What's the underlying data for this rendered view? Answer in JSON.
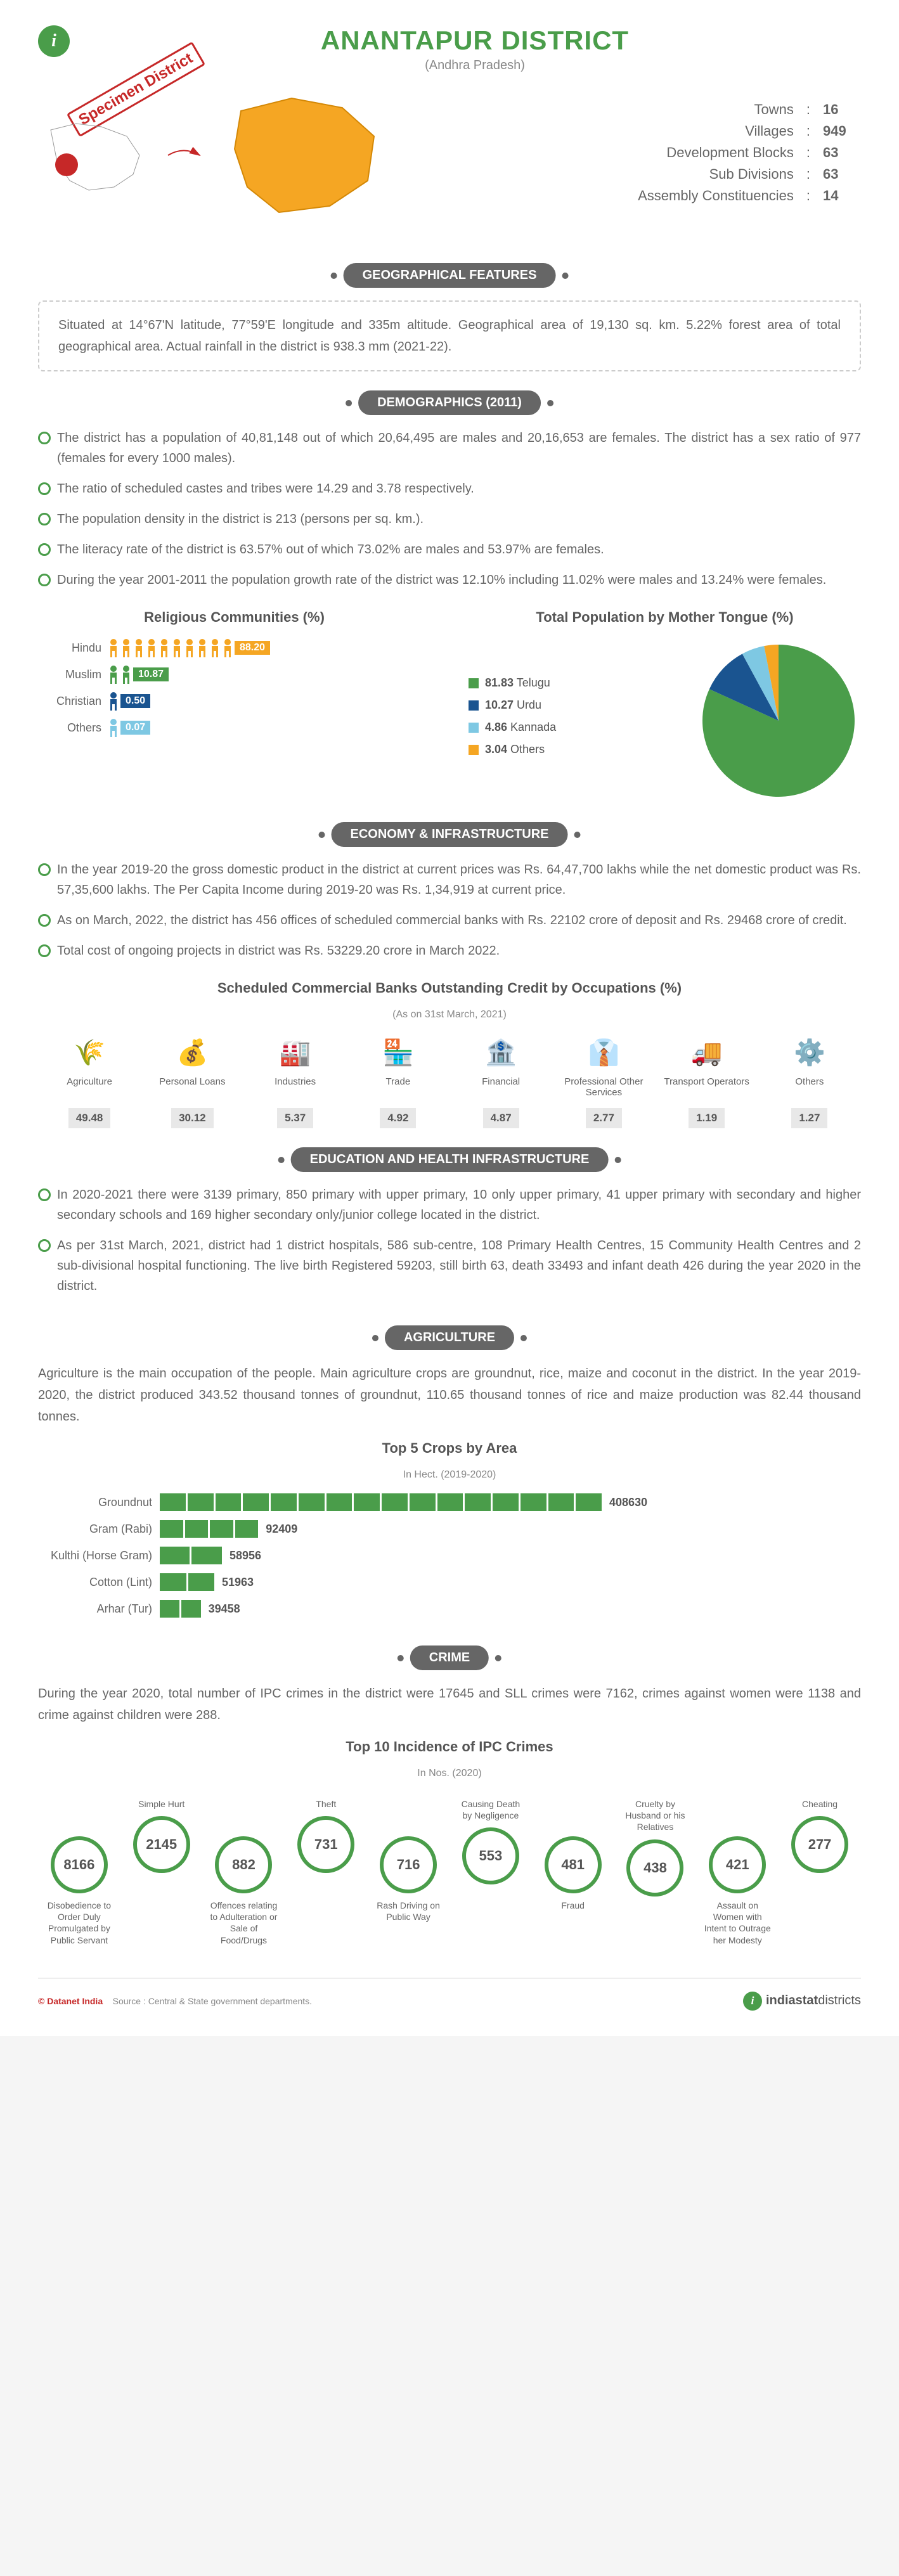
{
  "header": {
    "title": "ANANTAPUR DISTRICT",
    "subtitle": "(Andhra Pradesh)",
    "specimen": "Specimen District"
  },
  "stats": [
    {
      "label": "Towns",
      "value": "16"
    },
    {
      "label": "Villages",
      "value": "949"
    },
    {
      "label": "Development Blocks",
      "value": "63"
    },
    {
      "label": "Sub Divisions",
      "value": "63"
    },
    {
      "label": "Assembly Constituencies",
      "value": "14"
    }
  ],
  "sections": {
    "geo": {
      "title": "GEOGRAPHICAL FEATURES",
      "text": "Situated at 14°67'N latitude, 77°59'E longitude and 335m altitude. Geographical area of 19,130 sq. km. 5.22% forest area of total geographical area. Actual rainfall in the district is 938.3 mm (2021-22)."
    },
    "demo": {
      "title": "DEMOGRAPHICS (2011)",
      "bullets": [
        "The district has a population of 40,81,148 out of which 20,64,495 are males and 20,16,653 are females. The district has a sex ratio of 977 (females for every 1000 males).",
        "The ratio of scheduled castes and tribes were 14.29 and 3.78 respectively.",
        "The population density in the district is 213 (persons per sq. km.).",
        "The literacy rate of the district is 63.57% out of which 73.02% are males and 53.97% are females.",
        "During the year 2001-2011 the population growth rate of the district was 12.10% including 11.02% were males and 13.24% were females."
      ],
      "religion": {
        "title": "Religious Communities (%)",
        "items": [
          {
            "label": "Hindu",
            "value": "88.20",
            "count": 10,
            "color": "#f5a623"
          },
          {
            "label": "Muslim",
            "value": "10.87",
            "count": 2,
            "color": "#4a9d4a"
          },
          {
            "label": "Christian",
            "value": "0.50",
            "count": 1,
            "color": "#1a5490"
          },
          {
            "label": "Others",
            "value": "0.07",
            "count": 1,
            "color": "#7ec8e3"
          }
        ]
      },
      "language": {
        "title": "Total Population by Mother Tongue (%)",
        "items": [
          {
            "label": "Telugu",
            "value": "81.83",
            "color": "#4a9d4a"
          },
          {
            "label": "Urdu",
            "value": "10.27",
            "color": "#1a5490"
          },
          {
            "label": "Kannada",
            "value": "4.86",
            "color": "#7ec8e3"
          },
          {
            "label": "Others",
            "value": "3.04",
            "color": "#f5a623"
          }
        ]
      }
    },
    "economy": {
      "title": "ECONOMY & INFRASTRUCTURE",
      "bullets": [
        "In the year 2019-20 the gross domestic product in the district at current prices was Rs. 64,47,700 lakhs while the net domestic product was Rs. 57,35,600 lakhs. The Per Capita Income during 2019-20 was Rs. 1,34,919 at current price.",
        "As on March, 2022, the district has 456 offices of scheduled commercial banks with Rs. 22102 crore of deposit and Rs. 29468 crore of credit.",
        "Total cost of ongoing projects in district was Rs. 53229.20 crore in March 2022."
      ],
      "credit": {
        "title": "Scheduled Commercial Banks Outstanding Credit by Occupations (%)",
        "note": "(As on 31st March, 2021)",
        "items": [
          {
            "label": "Agriculture",
            "value": "49.48"
          },
          {
            "label": "Personal Loans",
            "value": "30.12"
          },
          {
            "label": "Industries",
            "value": "5.37"
          },
          {
            "label": "Trade",
            "value": "4.92"
          },
          {
            "label": "Financial",
            "value": "4.87"
          },
          {
            "label": "Professional Other Services",
            "value": "2.77"
          },
          {
            "label": "Transport Operators",
            "value": "1.19"
          },
          {
            "label": "Others",
            "value": "1.27"
          }
        ]
      }
    },
    "edu": {
      "title": "EDUCATION AND HEALTH INFRASTRUCTURE",
      "bullets": [
        "In 2020-2021 there were 3139 primary, 850 primary with upper primary, 10 only upper primary, 41 upper primary with secondary and higher secondary schools and 169 higher secondary only/junior college located in the district.",
        "As per 31st March, 2021, district had 1 district hospitals, 586 sub-centre, 108 Primary Health Centres, 15 Community Health Centres and 2 sub-divisional hospital functioning. The live birth Registered 59203, still birth 63, death 33493 and infant death 426 during the year 2020 in the district."
      ]
    },
    "agri": {
      "title": "AGRICULTURE",
      "text": "Agriculture is the main occupation of the people. Main agriculture crops are groundnut, rice, maize and coconut in the district. In the year 2019-2020, the district produced 343.52 thousand tonnes of groundnut, 110.65 thousand tonnes of rice and maize production was 82.44 thousand tonnes.",
      "crops": {
        "title": "Top 5 Crops by Area",
        "note": "In Hect. (2019-2020)",
        "items": [
          {
            "label": "Groundnut",
            "value": 408630
          },
          {
            "label": "Gram (Rabi)",
            "value": 92409
          },
          {
            "label": "Kulthi (Horse Gram)",
            "value": 58956
          },
          {
            "label": "Cotton (Lint)",
            "value": 51963
          },
          {
            "label": "Arhar (Tur)",
            "value": 39458
          }
        ],
        "max": 408630,
        "bar_color": "#4a9d4a"
      }
    },
    "crime": {
      "title": "CRIME",
      "text": "During the year 2020, total number of IPC crimes in the district were 17645 and SLL crimes were 7162, crimes against women were 1138 and crime against children were 288.",
      "ipc": {
        "title": "Top 10 Incidence of IPC Crimes",
        "note": "In Nos. (2020)",
        "items": [
          {
            "label": "Disobedience to Order Duly Promulgated by Public Servant",
            "value": "8166",
            "pos": "bottom"
          },
          {
            "label": "Simple Hurt",
            "value": "2145",
            "pos": "top"
          },
          {
            "label": "Offences relating to Adulteration or Sale of Food/Drugs",
            "value": "882",
            "pos": "bottom"
          },
          {
            "label": "Theft",
            "value": "731",
            "pos": "top"
          },
          {
            "label": "Rash Driving on Public Way",
            "value": "716",
            "pos": "bottom"
          },
          {
            "label": "Causing Death by Negligence",
            "value": "553",
            "pos": "top"
          },
          {
            "label": "Fraud",
            "value": "481",
            "pos": "bottom"
          },
          {
            "label": "Cruelty by Husband or his Relatives",
            "value": "438",
            "pos": "top"
          },
          {
            "label": "Assault on Women with Intent to Outrage her Modesty",
            "value": "421",
            "pos": "bottom"
          },
          {
            "label": "Cheating",
            "value": "277",
            "pos": "top"
          }
        ]
      }
    }
  },
  "footer": {
    "copyright": "© Datanet India",
    "source": "Source : Central & State government departments.",
    "logo": "indiastatdistricts"
  },
  "colors": {
    "primary": "#4a9d4a",
    "text": "#666",
    "header_bg": "#666"
  }
}
